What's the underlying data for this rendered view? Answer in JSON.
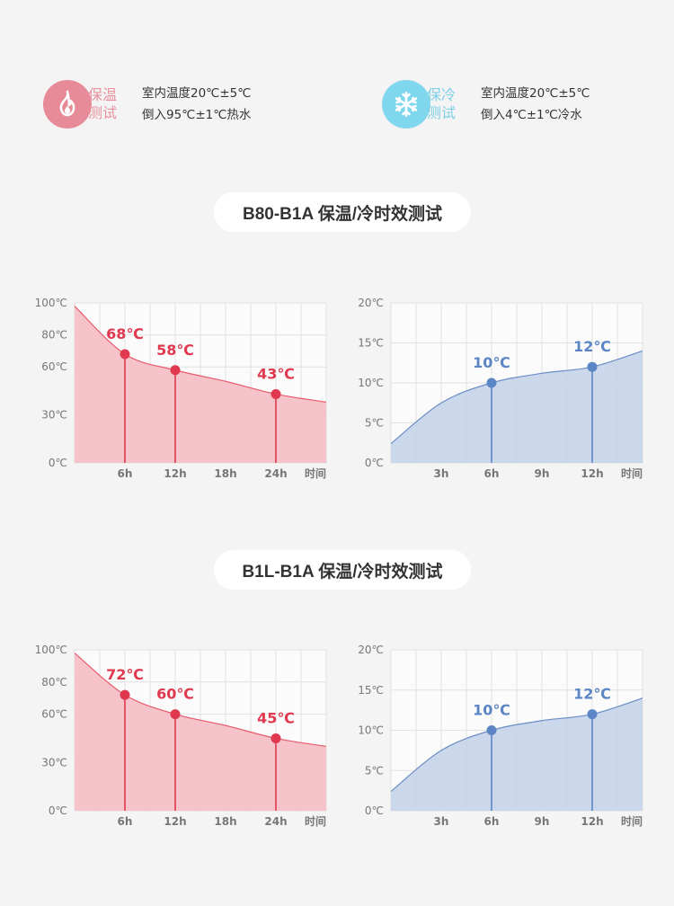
{
  "legend": {
    "hot": {
      "icon": "flame-icon",
      "tag_line1": "保温",
      "tag_line2": "测试",
      "desc_line1": "室内温度20℃±5℃",
      "desc_line2": "倒入95℃±1℃热水"
    },
    "cold": {
      "icon": "snowflake-icon",
      "tag_line1": "保冷",
      "tag_line2": "测试",
      "desc_line1": "室内温度20℃±5℃",
      "desc_line2": "倒入4℃±1℃冷水"
    }
  },
  "sections": [
    {
      "title": "B80-B1A 保温/冷时效测试"
    },
    {
      "title": "B1L-B1A 保温/冷时效测试"
    }
  ],
  "colors": {
    "hot_line": "#e85a6c",
    "hot_fill": "#f4bcc3",
    "hot_point": "#e0394f",
    "hot_label": "#e0394f",
    "cold_line": "#6a8dc6",
    "cold_fill": "#c5d3e8",
    "cold_point": "#5c85c6",
    "cold_label": "#5c85c6",
    "grid": "#e2e2e2",
    "axis_text": "#777777"
  },
  "chart_data": [
    {
      "type": "area",
      "theme": "hot",
      "section": 0,
      "xlabel": "时间",
      "x_tick_labels": [
        "6h",
        "12h",
        "18h",
        "24h"
      ],
      "x_ticks": [
        6,
        12,
        18,
        24
      ],
      "y_tick_labels": [
        "0℃",
        "30℃",
        "60℃",
        "80℃",
        "100℃"
      ],
      "y_ticks": [
        0,
        30,
        60,
        80,
        100
      ],
      "xlim": [
        0,
        30
      ],
      "ylim": [
        0,
        100
      ],
      "curve": [
        [
          0,
          98
        ],
        [
          6,
          68
        ],
        [
          12,
          58
        ],
        [
          18,
          51
        ],
        [
          24,
          43
        ],
        [
          30,
          38
        ]
      ],
      "points": [
        {
          "x": 6,
          "y": 68,
          "label": "68℃"
        },
        {
          "x": 12,
          "y": 58,
          "label": "58℃"
        },
        {
          "x": 24,
          "y": 43,
          "label": "43℃"
        }
      ]
    },
    {
      "type": "area",
      "theme": "cold",
      "section": 0,
      "xlabel": "时间",
      "x_tick_labels": [
        "3h",
        "6h",
        "9h",
        "12h"
      ],
      "x_ticks": [
        3,
        6,
        9,
        12
      ],
      "y_tick_labels": [
        "0℃",
        "5℃",
        "10℃",
        "15℃",
        "20℃"
      ],
      "y_ticks": [
        0,
        5,
        10,
        15,
        20
      ],
      "xlim": [
        0,
        15
      ],
      "ylim": [
        0,
        20
      ],
      "curve": [
        [
          0,
          2.4
        ],
        [
          3,
          7.5
        ],
        [
          6,
          10
        ],
        [
          9,
          11.2
        ],
        [
          12,
          12
        ],
        [
          15,
          14
        ]
      ],
      "points": [
        {
          "x": 6,
          "y": 10,
          "label": "10℃"
        },
        {
          "x": 12,
          "y": 12,
          "label": "12℃"
        }
      ]
    },
    {
      "type": "area",
      "theme": "hot",
      "section": 1,
      "xlabel": "时间",
      "x_tick_labels": [
        "6h",
        "12h",
        "18h",
        "24h"
      ],
      "x_ticks": [
        6,
        12,
        18,
        24
      ],
      "y_tick_labels": [
        "0℃",
        "30℃",
        "60℃",
        "80℃",
        "100℃"
      ],
      "y_ticks": [
        0,
        30,
        60,
        80,
        100
      ],
      "xlim": [
        0,
        30
      ],
      "ylim": [
        0,
        100
      ],
      "curve": [
        [
          0,
          98
        ],
        [
          6,
          72
        ],
        [
          12,
          60
        ],
        [
          18,
          53
        ],
        [
          24,
          45
        ],
        [
          30,
          40
        ]
      ],
      "points": [
        {
          "x": 6,
          "y": 72,
          "label": "72℃"
        },
        {
          "x": 12,
          "y": 60,
          "label": "60℃"
        },
        {
          "x": 24,
          "y": 45,
          "label": "45℃"
        }
      ]
    },
    {
      "type": "area",
      "theme": "cold",
      "section": 1,
      "xlabel": "时间",
      "x_tick_labels": [
        "3h",
        "6h",
        "9h",
        "12h"
      ],
      "x_ticks": [
        3,
        6,
        9,
        12
      ],
      "y_tick_labels": [
        "0℃",
        "5℃",
        "10℃",
        "15℃",
        "20℃"
      ],
      "y_ticks": [
        0,
        5,
        10,
        15,
        20
      ],
      "xlim": [
        0,
        15
      ],
      "ylim": [
        0,
        20
      ],
      "curve": [
        [
          0,
          2.4
        ],
        [
          3,
          7.5
        ],
        [
          6,
          10
        ],
        [
          9,
          11.2
        ],
        [
          12,
          12
        ],
        [
          15,
          14
        ]
      ],
      "points": [
        {
          "x": 6,
          "y": 10,
          "label": "10℃"
        },
        {
          "x": 12,
          "y": 12,
          "label": "12℃"
        }
      ]
    }
  ]
}
